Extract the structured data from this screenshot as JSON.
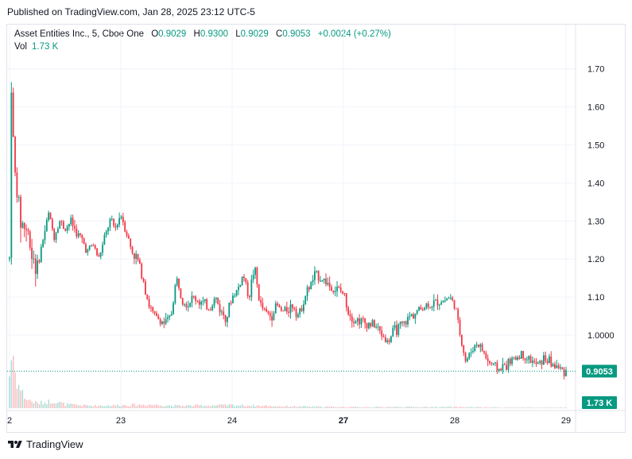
{
  "header": {
    "published": "Published on TradingView.com, Jan 28, 2025 23:12 UTC-5"
  },
  "legend": {
    "symbol": "Asset Entities Inc., 5, Cboe One",
    "o_label": "O",
    "o_value": "0.9029",
    "h_label": "H",
    "h_value": "0.9300",
    "l_label": "L",
    "l_value": "0.9029",
    "c_label": "C",
    "c_value": "0.9053",
    "change": "+0.0024 (+0.27%)",
    "vol_label": "Vol",
    "vol_value": "1.73 K"
  },
  "footer": {
    "brand": "TradingView",
    "logo_icon": "tradingview-logo-icon"
  },
  "colors": {
    "up": "#089981",
    "down": "#f23645",
    "price_tag": "#089981",
    "grid": "#f0f3fa"
  },
  "chart_data": {
    "type": "candlestick",
    "y_ticks": [
      "1.70",
      "1.60",
      "1.50",
      "1.40",
      "1.30",
      "1.20",
      "1.10",
      "1.0000"
    ],
    "y_tick_values": [
      1.7,
      1.6,
      1.5,
      1.4,
      1.3,
      1.2,
      1.1,
      1.0
    ],
    "ylim": [
      0.808,
      1.76
    ],
    "x_ticks": [
      {
        "label": "2",
        "pos": 0.0,
        "bold": false
      },
      {
        "label": "23",
        "pos": 0.2,
        "bold": false
      },
      {
        "label": "24",
        "pos": 0.4,
        "bold": false
      },
      {
        "label": "27",
        "pos": 0.6,
        "bold": true
      },
      {
        "label": "28",
        "pos": 0.8,
        "bold": false
      },
      {
        "label": "29",
        "pos": 1.0,
        "bold": false
      }
    ],
    "last_price": 0.9053,
    "last_price_label": "0.9053",
    "last_volume_label": "1.73 K",
    "close_path": [
      [
        0.0,
        1.2
      ],
      [
        0.003,
        1.68
      ],
      [
        0.008,
        1.45
      ],
      [
        0.013,
        1.38
      ],
      [
        0.02,
        1.3
      ],
      [
        0.03,
        1.28
      ],
      [
        0.04,
        1.22
      ],
      [
        0.05,
        1.18
      ],
      [
        0.06,
        1.25
      ],
      [
        0.07,
        1.32
      ],
      [
        0.08,
        1.26
      ],
      [
        0.09,
        1.3
      ],
      [
        0.1,
        1.28
      ],
      [
        0.11,
        1.3
      ],
      [
        0.12,
        1.27
      ],
      [
        0.13,
        1.25
      ],
      [
        0.14,
        1.22
      ],
      [
        0.15,
        1.24
      ],
      [
        0.16,
        1.2
      ],
      [
        0.17,
        1.25
      ],
      [
        0.18,
        1.3
      ],
      [
        0.19,
        1.28
      ],
      [
        0.2,
        1.32
      ],
      [
        0.21,
        1.27
      ],
      [
        0.22,
        1.22
      ],
      [
        0.23,
        1.2
      ],
      [
        0.24,
        1.15
      ],
      [
        0.25,
        1.08
      ],
      [
        0.26,
        1.05
      ],
      [
        0.27,
        1.04
      ],
      [
        0.28,
        1.03
      ],
      [
        0.29,
        1.05
      ],
      [
        0.3,
        1.15
      ],
      [
        0.31,
        1.1
      ],
      [
        0.32,
        1.08
      ],
      [
        0.33,
        1.1
      ],
      [
        0.34,
        1.09
      ],
      [
        0.35,
        1.08
      ],
      [
        0.36,
        1.07
      ],
      [
        0.37,
        1.1
      ],
      [
        0.38,
        1.06
      ],
      [
        0.39,
        1.05
      ],
      [
        0.4,
        1.1
      ],
      [
        0.41,
        1.12
      ],
      [
        0.42,
        1.16
      ],
      [
        0.43,
        1.1
      ],
      [
        0.44,
        1.18
      ],
      [
        0.45,
        1.08
      ],
      [
        0.46,
        1.06
      ],
      [
        0.47,
        1.05
      ],
      [
        0.48,
        1.08
      ],
      [
        0.49,
        1.06
      ],
      [
        0.5,
        1.07
      ],
      [
        0.51,
        1.08
      ],
      [
        0.52,
        1.05
      ],
      [
        0.53,
        1.1
      ],
      [
        0.54,
        1.13
      ],
      [
        0.55,
        1.16
      ],
      [
        0.56,
        1.15
      ],
      [
        0.57,
        1.14
      ],
      [
        0.58,
        1.12
      ],
      [
        0.59,
        1.12
      ],
      [
        0.6,
        1.11
      ],
      [
        0.61,
        1.06
      ],
      [
        0.62,
        1.04
      ],
      [
        0.63,
        1.04
      ],
      [
        0.64,
        1.03
      ],
      [
        0.65,
        1.03
      ],
      [
        0.66,
        1.02
      ],
      [
        0.67,
        1.0
      ],
      [
        0.68,
        0.98
      ],
      [
        0.69,
        1.01
      ],
      [
        0.7,
        1.02
      ],
      [
        0.71,
        1.03
      ],
      [
        0.72,
        1.05
      ],
      [
        0.73,
        1.06
      ],
      [
        0.74,
        1.07
      ],
      [
        0.75,
        1.08
      ],
      [
        0.76,
        1.08
      ],
      [
        0.77,
        1.09
      ],
      [
        0.78,
        1.09
      ],
      [
        0.79,
        1.1
      ],
      [
        0.8,
        1.08
      ],
      [
        0.81,
        1.0
      ],
      [
        0.82,
        0.93
      ],
      [
        0.83,
        0.96
      ],
      [
        0.84,
        0.98
      ],
      [
        0.85,
        0.96
      ],
      [
        0.86,
        0.93
      ],
      [
        0.87,
        0.92
      ],
      [
        0.88,
        0.91
      ],
      [
        0.89,
        0.92
      ],
      [
        0.9,
        0.93
      ],
      [
        0.91,
        0.94
      ],
      [
        0.92,
        0.95
      ],
      [
        0.93,
        0.94
      ],
      [
        0.94,
        0.93
      ],
      [
        0.95,
        0.92
      ],
      [
        0.96,
        0.94
      ],
      [
        0.97,
        0.93
      ],
      [
        0.98,
        0.92
      ],
      [
        0.99,
        0.91
      ],
      [
        1.0,
        0.9053
      ]
    ],
    "volume_profile": [
      [
        0.0,
        0.55
      ],
      [
        0.005,
        1.0
      ],
      [
        0.01,
        0.6
      ],
      [
        0.015,
        0.4
      ],
      [
        0.02,
        0.3
      ],
      [
        0.03,
        0.15
      ],
      [
        0.05,
        0.08
      ],
      [
        0.08,
        0.12
      ],
      [
        0.1,
        0.06
      ],
      [
        0.15,
        0.04
      ],
      [
        0.2,
        0.05
      ],
      [
        0.25,
        0.06
      ],
      [
        0.3,
        0.04
      ],
      [
        0.4,
        0.05
      ],
      [
        0.5,
        0.03
      ],
      [
        0.6,
        0.02
      ],
      [
        0.7,
        0.02
      ],
      [
        0.8,
        0.02
      ],
      [
        0.9,
        0.01
      ],
      [
        1.0,
        0.01
      ]
    ]
  }
}
